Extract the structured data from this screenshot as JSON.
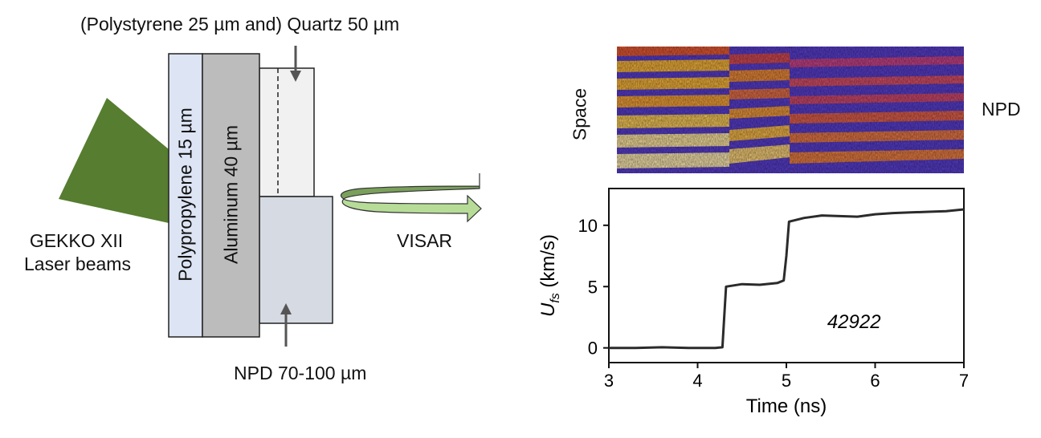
{
  "target": {
    "top_label": "(Polystyrene 25 µm and) Quartz 50 µm",
    "laser_label_line1": "GEKKO XII",
    "laser_label_line2": "Laser beams",
    "layer_polypropylene": "Polypropylene 15 µm",
    "layer_aluminum": "Aluminum 40 µm",
    "npd_label": "NPD 70-100 µm",
    "visar_label": "VISAR"
  },
  "streak": {
    "ylabel": "Space",
    "side_label": "NPD"
  },
  "chart_data": {
    "type": "line",
    "title": "",
    "xlabel": "Time (ns)",
    "ylabel_main": "U",
    "ylabel_sub": "fs",
    "ylabel_unit": " (km/s)",
    "xlim": [
      3,
      7
    ],
    "ylim": [
      -1.2,
      13
    ],
    "xticks": [
      3,
      4,
      5,
      6,
      7
    ],
    "yticks": [
      0,
      5,
      10
    ],
    "annotation": "42922",
    "series": [
      {
        "name": "U_fs",
        "x": [
          3.0,
          3.3,
          3.6,
          3.9,
          4.2,
          4.28,
          4.3,
          4.32,
          4.5,
          4.7,
          4.9,
          4.97,
          5.0,
          5.03,
          5.2,
          5.4,
          5.6,
          5.8,
          6.0,
          6.2,
          6.4,
          6.6,
          6.8,
          7.0
        ],
        "y": [
          0.0,
          0.0,
          0.05,
          0.0,
          0.0,
          0.05,
          2.5,
          5.0,
          5.2,
          5.15,
          5.3,
          5.5,
          7.5,
          10.3,
          10.6,
          10.8,
          10.75,
          10.7,
          10.9,
          11.0,
          11.05,
          11.1,
          11.15,
          11.3
        ]
      }
    ]
  },
  "colors": {
    "laser": "#567d30",
    "polypropylene": "#dde5f4",
    "aluminum": "#bcbcbc",
    "quartz": "#f1f1f1",
    "npd": "#d5dae3",
    "visar_dark": "#7aa05c",
    "visar_light": "#b7dc98"
  }
}
